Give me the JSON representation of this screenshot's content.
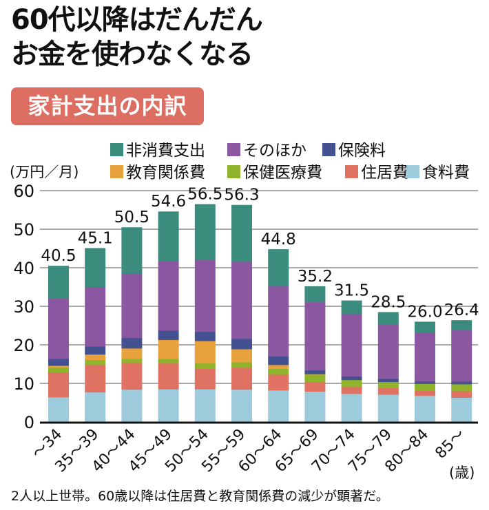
{
  "headline": {
    "line1": "60代以降はだんだん",
    "line2": "お金を使わなくなる"
  },
  "badge": "家計支出の内訳",
  "note": "2人以上世帯。60歳以降は住居費と教育関係費の減少が顕著だ。",
  "chart_data": {
    "type": "bar",
    "stacked": true,
    "title": "家計支出の内訳",
    "ylabel": "(万円／月)",
    "xlabel": "(歳)",
    "ylim": [
      0,
      60
    ],
    "yticks": [
      0,
      10,
      20,
      30,
      40,
      50,
      60
    ],
    "grid": true,
    "legend_position": "top",
    "categories": [
      "〜34",
      "35〜39",
      "40〜44",
      "45〜49",
      "50〜54",
      "55〜59",
      "60〜64",
      "65〜69",
      "70〜74",
      "75〜79",
      "80〜84",
      "85〜"
    ],
    "totals": [
      "40.5",
      "45.1",
      "50.5",
      "54.6",
      "56.5",
      "56.3",
      "44.8",
      "35.2",
      "31.5",
      "28.5",
      "26.0",
      "26.4"
    ],
    "series": [
      {
        "name": "食料費",
        "color": "#9ecbdc",
        "values": [
          6.4,
          7.7,
          8.4,
          8.5,
          8.5,
          8.4,
          8.2,
          7.9,
          7.3,
          7.1,
          6.8,
          6.3
        ]
      },
      {
        "name": "住居費",
        "color": "#e07264",
        "values": [
          6.5,
          7.1,
          6.9,
          6.7,
          5.3,
          5.7,
          4.1,
          2.5,
          1.8,
          1.7,
          1.4,
          1.7
        ]
      },
      {
        "name": "保健医療費",
        "color": "#8fb32a",
        "values": [
          1.2,
          1.3,
          1.1,
          1.2,
          1.4,
          1.4,
          1.5,
          1.9,
          1.8,
          1.6,
          1.7,
          1.8
        ]
      },
      {
        "name": "教育関係費",
        "color": "#e8a23d",
        "values": [
          0.5,
          1.4,
          2.7,
          4.9,
          5.8,
          3.4,
          1.0,
          0.1,
          0.0,
          0.0,
          0.0,
          0.0
        ]
      },
      {
        "name": "保険料",
        "color": "#435191",
        "values": [
          1.8,
          2.1,
          2.7,
          2.4,
          2.4,
          2.7,
          2.2,
          1.0,
          0.9,
          0.8,
          0.6,
          0.7
        ]
      },
      {
        "name": "そのほか",
        "color": "#8b57a1",
        "values": [
          15.6,
          15.4,
          16.6,
          18.1,
          18.6,
          20.0,
          18.2,
          17.8,
          16.2,
          14.1,
          12.7,
          13.4
        ]
      },
      {
        "name": "非消費支出",
        "color": "#3c8c7d",
        "values": [
          8.5,
          10.1,
          12.1,
          12.8,
          14.5,
          14.7,
          9.6,
          4.0,
          3.5,
          3.2,
          2.8,
          2.5
        ]
      }
    ],
    "legend": [
      {
        "name": "非消費支出",
        "color": "#3c8c7d"
      },
      {
        "name": "そのほか",
        "color": "#8b57a1"
      },
      {
        "name": "保険料",
        "color": "#435191"
      },
      {
        "name": "教育関係費",
        "color": "#e8a23d"
      },
      {
        "name": "保健医療費",
        "color": "#8fb32a"
      },
      {
        "name": "住居費",
        "color": "#e07264"
      },
      {
        "name": "食料費",
        "color": "#9ecbdc"
      }
    ]
  }
}
